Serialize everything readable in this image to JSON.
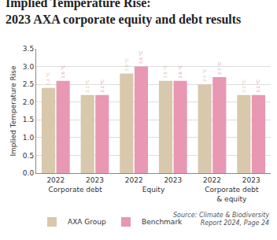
{
  "chart_data": {
    "type": "bar",
    "title": "Implied Temperature Rise:\n2023 AXA corporate equity and debt results",
    "y_label": "Implied Temperature Rise",
    "groups": [
      "Corporate debt",
      "Corporate debt",
      "Equity",
      "Equity",
      "Corporate debt\n& equity",
      "Corporate debt\n& equity"
    ],
    "categories": [
      "2022",
      "2023",
      "2022",
      "2023",
      "2022",
      "2023"
    ],
    "series": [
      {
        "name": "AXA Group",
        "color": "#d8c8ac",
        "values": [
          2.4,
          2.2,
          2.8,
          2.6,
          2.5,
          2.2
        ],
        "value_labels": [
          "2.4 °C",
          "2.2 °C",
          "2.8 °C",
          "2.6 °C",
          "2.5 °C",
          "2.2 °C"
        ]
      },
      {
        "name": "Benchmark",
        "color": "#e898b2",
        "values": [
          2.6,
          2.2,
          3.0,
          2.6,
          2.7,
          2.2
        ],
        "value_labels": [
          "2.6 °C",
          "2.2 °C",
          "3.0 °C",
          "2.6 °C",
          "2.7 °C",
          "2.2 °C"
        ]
      }
    ],
    "ylim": [
      0,
      3.5
    ],
    "yticks": [
      {
        "value": 0,
        "label": "0.0"
      },
      0.5,
      {
        "value": 1,
        "label": "1.0"
      },
      1.5,
      {
        "value": 2,
        "label": "2.0"
      },
      2.5,
      {
        "value": 3,
        "label": "3.0"
      },
      3.5
    ],
    "grid": true,
    "data_labels": true,
    "legend": "bottom left",
    "source": "Source: Climate & Biodiversity\nReport 2024, Page 24"
  }
}
